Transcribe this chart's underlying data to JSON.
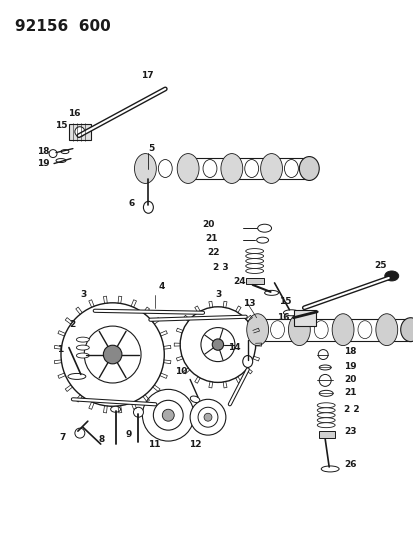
{
  "title": "92156  600",
  "bg_color": "#ffffff",
  "line_color": "#1a1a1a",
  "title_fontsize": 11,
  "label_fontsize": 6.5,
  "fig_width": 4.14,
  "fig_height": 5.33,
  "dpi": 100
}
